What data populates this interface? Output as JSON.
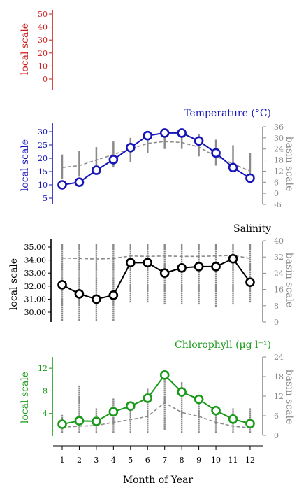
{
  "colors": {
    "red": "#cc1f1f",
    "blue": "#1515b8",
    "black": "#000000",
    "green": "#1a9a1a",
    "gray": "#8a8a8a"
  },
  "months": [
    "1",
    "2",
    "3",
    "4",
    "5",
    "6",
    "7",
    "8",
    "9",
    "10",
    "11",
    "12"
  ],
  "xlabel": "Month of Year",
  "chart_data": [
    {
      "type": "line",
      "title": "",
      "ylabel": "local scale",
      "color": "#cc1f1f",
      "ylim": [
        0,
        50
      ],
      "yticks": [
        "0",
        "10",
        "20",
        "30",
        "40",
        "50"
      ],
      "series": []
    },
    {
      "type": "line",
      "title": "Temperature (°C)",
      "ylabel": "local scale",
      "y2label": "basin scale",
      "color": "#1515b8",
      "ylim": [
        5,
        30
      ],
      "yticks": [
        "5",
        "10",
        "15",
        "20",
        "25",
        "30"
      ],
      "y2lim": [
        -6,
        36
      ],
      "y2ticks": [
        "-6",
        "0",
        "6",
        "12",
        "18",
        "24",
        "30",
        "36"
      ],
      "x": [
        1,
        2,
        3,
        4,
        5,
        6,
        7,
        8,
        9,
        10,
        11,
        12
      ],
      "local": [
        10,
        11,
        15.5,
        19.5,
        24,
        28.5,
        29.5,
        29.5,
        26.5,
        22,
        16.5,
        12.5
      ],
      "basin_mean": [
        14,
        15,
        18,
        21,
        24,
        27,
        28,
        27.5,
        25,
        20,
        16,
        12
      ],
      "basin_range": [
        [
          8,
          21
        ],
        [
          9,
          23
        ],
        [
          11,
          25
        ],
        [
          14,
          28
        ],
        [
          17,
          30
        ],
        [
          22,
          33
        ],
        [
          24,
          34
        ],
        [
          24,
          34
        ],
        [
          20,
          32
        ],
        [
          15,
          29
        ],
        [
          12,
          26
        ],
        [
          9,
          22
        ]
      ]
    },
    {
      "type": "line",
      "title": "Salinity",
      "ylabel": "local scale",
      "y2label": "basin scale",
      "color": "#000000",
      "ylim": [
        30,
        35
      ],
      "yticks": [
        "30.00",
        "31.00",
        "32.00",
        "33.00",
        "34.00",
        "35.00"
      ],
      "y2lim": [
        0,
        40
      ],
      "y2ticks": [
        "0",
        "8",
        "16",
        "24",
        "32",
        "40"
      ],
      "x": [
        1,
        2,
        3,
        4,
        5,
        6,
        7,
        8,
        9,
        10,
        11,
        12
      ],
      "local": [
        32.1,
        31.4,
        31.0,
        31.3,
        33.8,
        33.8,
        33.0,
        33.4,
        33.5,
        33.5,
        34.1,
        32.3
      ],
      "basin_mean": [
        31.5,
        31.3,
        31.0,
        31.3,
        32.5,
        32.3,
        32.5,
        32.3,
        32.3,
        32.5,
        32.8,
        31.3
      ],
      "basin_range": [
        [
          1,
          38
        ],
        [
          1,
          38
        ],
        [
          1,
          38
        ],
        [
          1,
          38
        ],
        [
          10,
          38
        ],
        [
          10,
          38
        ],
        [
          9,
          38
        ],
        [
          9,
          38
        ],
        [
          9,
          38
        ],
        [
          8,
          38
        ],
        [
          9,
          38
        ],
        [
          10,
          38
        ]
      ]
    },
    {
      "type": "line",
      "title": "Chlorophyll (μg l⁻¹)",
      "ylabel": "local scale",
      "y2label": "basin scale",
      "color": "#1a9a1a",
      "ylim": [
        0,
        14
      ],
      "yticks": [
        "4",
        "8",
        "12"
      ],
      "y2lim": [
        0,
        24
      ],
      "y2ticks": [
        "0",
        "6",
        "12",
        "18",
        "24"
      ],
      "x": [
        1,
        2,
        3,
        4,
        5,
        6,
        7,
        8,
        9,
        10,
        11,
        12
      ],
      "local": [
        2.1,
        2.7,
        2.6,
        4.3,
        5.3,
        6.7,
        10.8,
        7.8,
        6.5,
        4.5,
        3.0,
        2.2
      ],
      "basin_mean": [
        2.5,
        2.8,
        3.0,
        4.0,
        4.8,
        5.8,
        10.0,
        7.0,
        5.8,
        4.0,
        2.8,
        2.3
      ],
      "basin_range": [
        [
          1,
          6
        ],
        [
          1,
          15
        ],
        [
          1,
          8
        ],
        [
          1,
          11
        ],
        [
          1,
          10
        ],
        [
          1,
          14
        ],
        [
          2,
          19
        ],
        [
          1,
          16
        ],
        [
          1,
          12
        ],
        [
          1,
          8
        ],
        [
          1,
          8
        ],
        [
          1,
          8
        ]
      ]
    }
  ]
}
